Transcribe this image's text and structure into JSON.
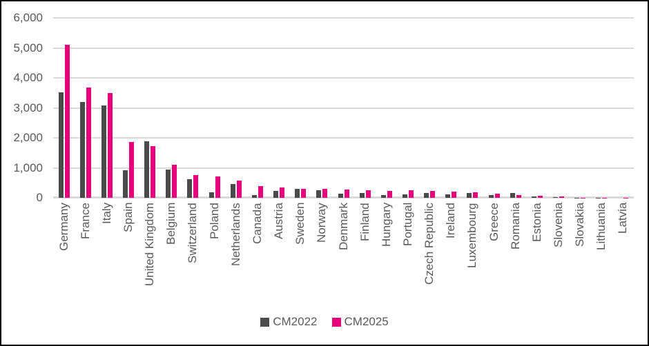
{
  "chart_data": {
    "type": "bar",
    "title": "",
    "xlabel": "",
    "ylabel": "",
    "categories": [
      "Germany",
      "France",
      "Italy",
      "Spain",
      "United Kingdom",
      "Belgium",
      "Switzerland",
      "Poland",
      "Netherlands",
      "Canada",
      "Austria",
      "Sweden",
      "Norway",
      "Denmark",
      "Finland",
      "Hungary",
      "Portugal",
      "Czech Republic",
      "Ireland",
      "Luxembourg",
      "Greece",
      "Romania",
      "Estonia",
      "Slovenia",
      "Slovakia",
      "Lithuania",
      "Latvia"
    ],
    "series": [
      {
        "name": "CM2022",
        "color": "#4a4a4a",
        "values": [
          3520,
          3200,
          3090,
          930,
          1890,
          950,
          630,
          190,
          460,
          90,
          220,
          300,
          260,
          130,
          155,
          95,
          115,
          160,
          115,
          150,
          90,
          150,
          55,
          15,
          5,
          2,
          1
        ]
      },
      {
        "name": "CM2025",
        "color": "#e6007e",
        "values": [
          5100,
          3690,
          3500,
          1870,
          1730,
          1110,
          770,
          720,
          580,
          400,
          350,
          310,
          290,
          270,
          255,
          225,
          245,
          230,
          210,
          190,
          130,
          90,
          70,
          45,
          8,
          3,
          2
        ]
      }
    ],
    "ylim": [
      0,
      6000
    ],
    "ytick_interval": 1000,
    "yticks": [
      {
        "value": 0,
        "label": "0"
      },
      {
        "value": 1000,
        "label": "1,000"
      },
      {
        "value": 2000,
        "label": "2,000"
      },
      {
        "value": 3000,
        "label": "3,000"
      },
      {
        "value": 4000,
        "label": "4,000"
      },
      {
        "value": 5000,
        "label": "5,000"
      },
      {
        "value": 6000,
        "label": "6,000"
      }
    ],
    "grid": "horizontal",
    "legend_position": "bottom",
    "colors": {
      "gridline": "#d9d9d9",
      "axis_text": "#595959",
      "background": "#ffffff",
      "frame_border": "#000000"
    }
  }
}
